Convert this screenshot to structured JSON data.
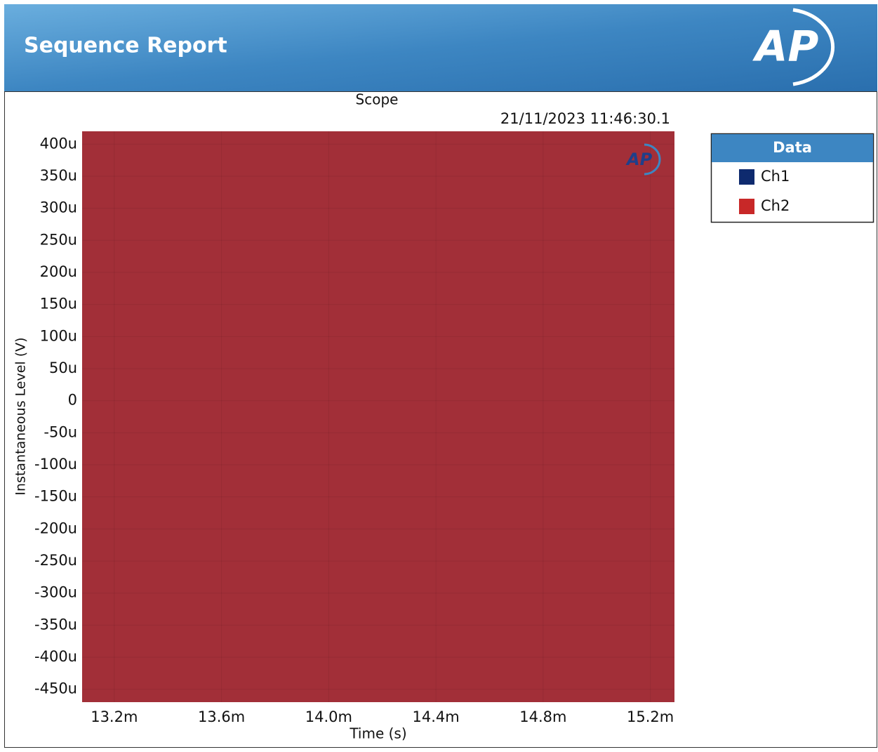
{
  "header": {
    "title": "Sequence Report",
    "logo": "AP"
  },
  "chart_data": {
    "type": "scope",
    "title": "Scope",
    "timestamp": "21/11/2023 11:46:30.1",
    "xlabel": "Time (s)",
    "ylabel": "Instantaneous Level (V)",
    "legend_title": "Data",
    "legend": "right",
    "grid": true,
    "plot_fill": "#a22f38",
    "series": [
      {
        "name": "Ch1",
        "color": "#0e2a6e"
      },
      {
        "name": "Ch2",
        "color": "#c82828"
      }
    ],
    "xlim": [
      0.01308,
      0.01529
    ],
    "xticks": [
      {
        "value": 0.0132,
        "label": "13.2m"
      },
      {
        "value": 0.0136,
        "label": "13.6m"
      },
      {
        "value": 0.014,
        "label": "14.0m"
      },
      {
        "value": 0.0144,
        "label": "14.4m"
      },
      {
        "value": 0.0148,
        "label": "14.8m"
      },
      {
        "value": 0.0152,
        "label": "15.2m"
      }
    ],
    "ylim": [
      -0.00047,
      0.00042
    ],
    "yticks": [
      {
        "value": 0.0004,
        "label": "400u"
      },
      {
        "value": 0.00035,
        "label": "350u"
      },
      {
        "value": 0.0003,
        "label": "300u"
      },
      {
        "value": 0.00025,
        "label": "250u"
      },
      {
        "value": 0.0002,
        "label": "200u"
      },
      {
        "value": 0.00015,
        "label": "150u"
      },
      {
        "value": 0.0001,
        "label": "100u"
      },
      {
        "value": 5e-05,
        "label": "50u"
      },
      0,
      {
        "value": -5e-05,
        "label": "-50u"
      },
      {
        "value": -0.0001,
        "label": "-100u"
      },
      {
        "value": -0.00015,
        "label": "-150u"
      },
      {
        "value": -0.0002,
        "label": "-200u"
      },
      {
        "value": -0.00025,
        "label": "-250u"
      },
      {
        "value": -0.0003,
        "label": "-300u"
      },
      {
        "value": -0.00035,
        "label": "-350u"
      },
      {
        "value": -0.0004,
        "label": "-400u"
      },
      {
        "value": -0.00045,
        "label": "-450u"
      }
    ]
  }
}
